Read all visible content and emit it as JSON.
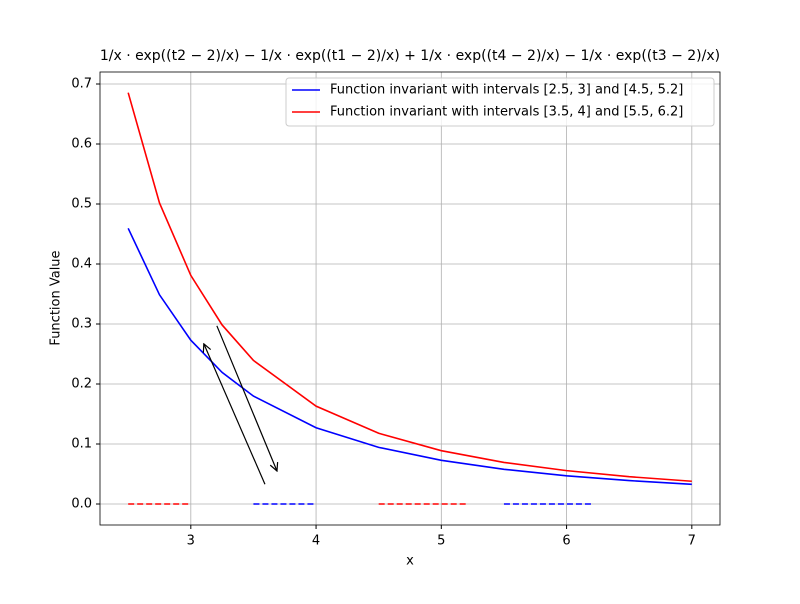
{
  "chart_data": {
    "type": "line",
    "title": "1/x · exp((t2 − 2)/x) − 1/x · exp((t1 − 2)/x) + 1/x · exp((t4 − 2)/x) − 1/x · exp((t3 − 2)/x)",
    "x_label": "x",
    "y_label": "Function Value",
    "x": [
      2.5,
      2.75,
      3,
      3.25,
      3.5,
      4,
      4.5,
      5,
      5.5,
      6,
      6.5,
      7
    ],
    "series": [
      {
        "name": "Function invariant with intervals [2.5, 3] and [4.5, 5.2]",
        "color": "#0000ff",
        "values": [
          0.4595,
          0.3487,
          0.273,
          0.2193,
          0.1798,
          0.1271,
          0.0944,
          0.0728,
          0.0578,
          0.047,
          0.039,
          0.0328
        ]
      },
      {
        "name": "Function invariant with intervals [3.5, 4] and [5.5, 6.2]",
        "color": "#ff0000",
        "values": [
          0.6855,
          0.5017,
          0.381,
          0.2984,
          0.2393,
          0.1631,
          0.1179,
          0.0889,
          0.0693,
          0.0556,
          0.0455,
          0.0379
        ]
      }
    ],
    "interval_lines": [
      {
        "color": "#ff0000",
        "x": [
          2.5,
          3
        ],
        "y": [
          0,
          0
        ]
      },
      {
        "color": "#0000ff",
        "x": [
          3.5,
          4
        ],
        "y": [
          0,
          0
        ]
      },
      {
        "color": "#ff0000",
        "x": [
          4.5,
          5.2
        ],
        "y": [
          0,
          0
        ]
      },
      {
        "color": "#0000ff",
        "x": [
          5.5,
          6.2
        ],
        "y": [
          0,
          0
        ]
      }
    ],
    "arrows": [
      {
        "xytext": [
          3.592,
          0.033
        ],
        "xy": [
          3.104,
          0.267
        ]
      },
      {
        "xytext": [
          3.208,
          0.297
        ],
        "xy": [
          3.688,
          0.055
        ]
      }
    ],
    "xlim": [
      2.275,
      7.225
    ],
    "ylim": [
      -0.035,
      0.72
    ],
    "xticks": [
      3,
      4,
      5,
      6,
      7
    ],
    "yticks": [
      {
        "value": 0,
        "label": "0.0"
      },
      0.1,
      0.2,
      0.3,
      0.4,
      0.5,
      0.6,
      0.7
    ],
    "grid": true,
    "legend": "upper-right"
  }
}
